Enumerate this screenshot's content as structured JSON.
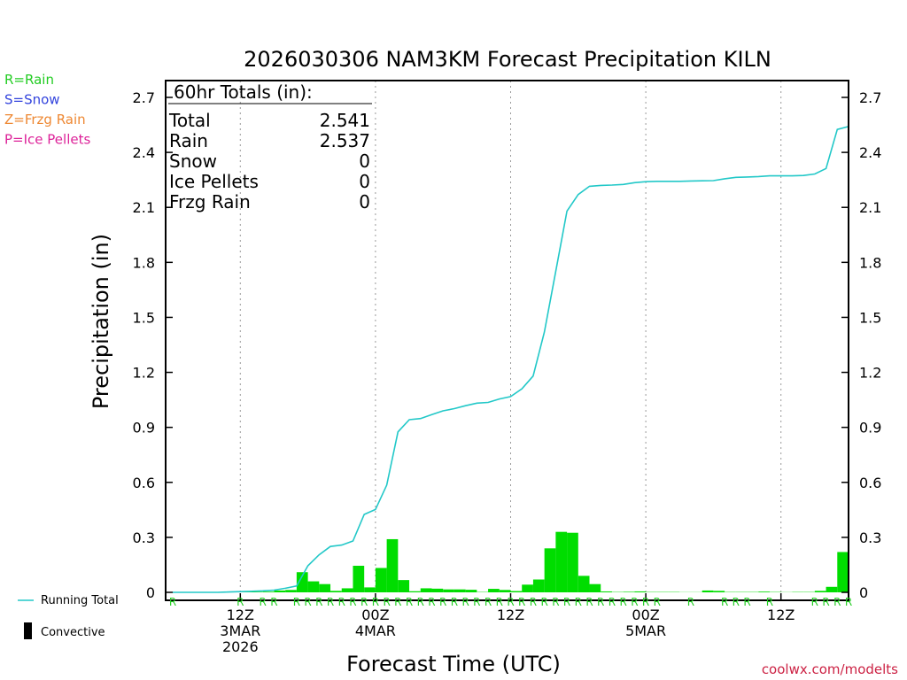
{
  "title": "2026030306 NAM3KM Forecast Precipitation KILN",
  "legend_left": [
    {
      "text": "R=Rain",
      "color": "#22cc22"
    },
    {
      "text": "S=Snow",
      "color": "#3344dd"
    },
    {
      "text": "Z=Frzg Rain",
      "color": "#ee8833"
    },
    {
      "text": "P=Ice Pellets",
      "color": "#dd2299"
    }
  ],
  "totals_box": {
    "header": "60hr Totals (in):",
    "rows": [
      {
        "label": "Total",
        "value": "2.541"
      },
      {
        "label": "Rain",
        "value": "2.537"
      },
      {
        "label": "Snow",
        "value": "0"
      },
      {
        "label": "Ice Pellets",
        "value": "0"
      },
      {
        "label": "Frzg Rain",
        "value": "0"
      }
    ]
  },
  "legend_bottom": {
    "running_total": "Running Total",
    "convective": "Convective"
  },
  "credit": "coolwx.com/modelts",
  "colors": {
    "running_total_line": "#22c8c8",
    "bars": "#00dd00",
    "rain_marker": "#22cc22",
    "credit": "#cc2244"
  },
  "chart_data": {
    "type": "bar",
    "ylabel": "Precipitation (in)",
    "xlabel": "Forecast Time (UTC)",
    "ylim": [
      0,
      2.8
    ],
    "yticks": [
      0,
      0.3,
      0.6,
      0.9,
      1.2,
      1.5,
      1.8,
      2.1,
      2.4,
      2.7
    ],
    "ytick_labels": [
      "0",
      "0.3",
      "0.6",
      "0.9",
      "1.2",
      "1.5",
      "1.8",
      "2.1",
      "2.4",
      "2.7"
    ],
    "x_unit": "forecast hour",
    "xlim": [
      0,
      60
    ],
    "x_ticks": [
      {
        "x": 6,
        "lines": [
          "12Z",
          "3MAR",
          "2026"
        ]
      },
      {
        "x": 18,
        "lines": [
          "00Z",
          "4MAR"
        ]
      },
      {
        "x": 30,
        "lines": [
          "12Z"
        ]
      },
      {
        "x": 42,
        "lines": [
          "00Z",
          "5MAR"
        ]
      },
      {
        "x": 54,
        "lines": [
          "12Z"
        ]
      }
    ],
    "series": [
      {
        "name": "Running Total",
        "type": "line",
        "x": [
          0,
          1,
          2,
          3,
          4,
          5,
          6,
          7,
          8,
          9,
          10,
          11,
          12,
          13,
          14,
          15,
          16,
          17,
          18,
          19,
          20,
          21,
          22,
          23,
          24,
          25,
          26,
          27,
          28,
          29,
          30,
          31,
          32,
          33,
          34,
          35,
          36,
          37,
          38,
          39,
          40,
          41,
          42,
          43,
          44,
          45,
          46,
          47,
          48,
          49,
          50,
          51,
          52,
          53,
          54,
          55,
          56,
          57,
          58,
          59,
          60
        ],
        "values": [
          0,
          0,
          0,
          0,
          0,
          0.002,
          0.004,
          0.006,
          0.008,
          0.012,
          0.022,
          0.035,
          0.145,
          0.205,
          0.25,
          0.258,
          0.28,
          0.425,
          0.452,
          0.585,
          0.875,
          0.942,
          0.948,
          0.97,
          0.99,
          1.002,
          1.018,
          1.032,
          1.036,
          1.055,
          1.068,
          1.11,
          1.18,
          1.42,
          1.75,
          2.08,
          2.17,
          2.215,
          2.22,
          2.222,
          2.225,
          2.235,
          2.24,
          2.242,
          2.242,
          2.242,
          2.244,
          2.245,
          2.246,
          2.256,
          2.264,
          2.266,
          2.268,
          2.272,
          2.272,
          2.272,
          2.274,
          2.282,
          2.312,
          2.525,
          2.541
        ]
      },
      {
        "name": "Convective",
        "type": "bar",
        "x": [
          1,
          2,
          3,
          4,
          5,
          6,
          7,
          8,
          9,
          10,
          11,
          12,
          13,
          14,
          15,
          16,
          17,
          18,
          19,
          20,
          21,
          22,
          23,
          24,
          25,
          26,
          27,
          28,
          29,
          30,
          31,
          32,
          33,
          34,
          35,
          36,
          37,
          38,
          39,
          40,
          41,
          42,
          43,
          44,
          45,
          46,
          47,
          48,
          49,
          50,
          51,
          52,
          53,
          54,
          55,
          56,
          57,
          58,
          59,
          60
        ],
        "values": [
          0,
          0,
          0,
          0,
          0.002,
          0.003,
          0.002,
          0.003,
          0.004,
          0.01,
          0.013,
          0.11,
          0.06,
          0.045,
          0.008,
          0.022,
          0.145,
          0.027,
          0.133,
          0.29,
          0.067,
          0.006,
          0.022,
          0.02,
          0.016,
          0.016,
          0.014,
          0.002,
          0.019,
          0.013,
          0.007,
          0.042,
          0.07,
          0.24,
          0.33,
          0.325,
          0.09,
          0.045,
          0.005,
          0.002,
          0.003,
          0.005,
          0.002,
          0.002,
          0.002,
          0.001,
          0.001,
          0.01,
          0.008,
          0.002,
          0.002,
          0.002,
          0.004,
          0.002,
          0.001,
          0.002,
          0.002,
          0.008,
          0.03,
          0.22
        ]
      }
    ],
    "precip_type_markers": {
      "symbol": "R",
      "hours": [
        0,
        6,
        8,
        9,
        11,
        12,
        13,
        14,
        15,
        16,
        17,
        18,
        19,
        20,
        21,
        22,
        23,
        24,
        25,
        26,
        27,
        28,
        29,
        30,
        31,
        32,
        33,
        34,
        35,
        36,
        37,
        38,
        39,
        40,
        41,
        42,
        43,
        46,
        49,
        50,
        51,
        53,
        57,
        58,
        59,
        60
      ]
    },
    "grid": "dotted vertical at x_ticks",
    "right_axis": "mirrors left"
  }
}
